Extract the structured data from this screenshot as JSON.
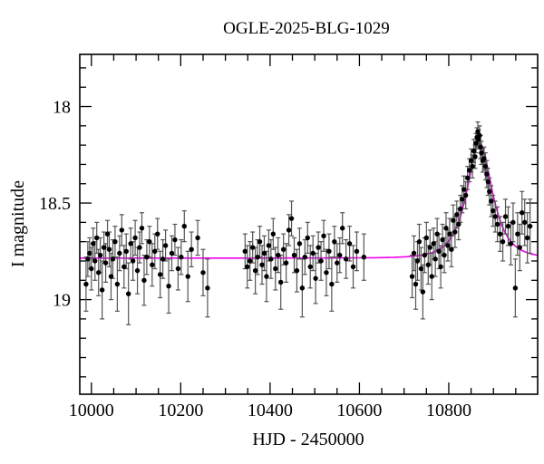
{
  "chart_data": {
    "type": "scatter",
    "title": "OGLE-2025-BLG-1029",
    "xlabel": "HJD - 2450000",
    "ylabel": "I magnitude",
    "xlim": [
      9974,
      10999
    ],
    "ylim": [
      17.73,
      19.49
    ],
    "y_axis_inverted": true,
    "grid": false,
    "legend": null,
    "x_major_ticks": [
      10000,
      10200,
      10400,
      10600,
      10800
    ],
    "x_minor_step": 50,
    "y_major_ticks": [
      18,
      18.5,
      19
    ],
    "y_minor_step": 0.1,
    "colors": {
      "points": "#000000",
      "error_bars": "#555555",
      "model_curve": "#ee00ee",
      "frame": "#000000",
      "background": "#ffffff"
    },
    "model": {
      "kind": "paczynski-microlensing",
      "t0": 10869,
      "tE": 42,
      "u0": 0.67,
      "I_baseline": 18.785,
      "I_peak": 18.19
    },
    "points_format": [
      "hjd_minus_2450000",
      "I_mag",
      "mag_error"
    ],
    "points": [
      [
        9988,
        18.92,
        0.14
      ],
      [
        9992,
        18.79,
        0.09
      ],
      [
        9996,
        18.76,
        0.08
      ],
      [
        10000,
        18.84,
        0.11
      ],
      [
        10004,
        18.71,
        0.08
      ],
      [
        10008,
        18.8,
        0.1
      ],
      [
        10012,
        18.68,
        0.08
      ],
      [
        10016,
        18.86,
        0.12
      ],
      [
        10020,
        18.77,
        0.09
      ],
      [
        10024,
        18.95,
        0.15
      ],
      [
        10028,
        18.73,
        0.08
      ],
      [
        10032,
        18.81,
        0.1
      ],
      [
        10036,
        18.66,
        0.07
      ],
      [
        10040,
        18.74,
        0.09
      ],
      [
        10044,
        18.88,
        0.12
      ],
      [
        10048,
        18.79,
        0.1
      ],
      [
        10053,
        18.7,
        0.08
      ],
      [
        10058,
        18.92,
        0.14
      ],
      [
        10063,
        18.76,
        0.09
      ],
      [
        10068,
        18.64,
        0.08
      ],
      [
        10073,
        18.83,
        0.11
      ],
      [
        10078,
        18.75,
        0.09
      ],
      [
        10083,
        18.97,
        0.16
      ],
      [
        10088,
        18.71,
        0.08
      ],
      [
        10093,
        18.8,
        0.1
      ],
      [
        10098,
        18.68,
        0.09
      ],
      [
        10103,
        18.85,
        0.12
      ],
      [
        10108,
        18.73,
        0.08
      ],
      [
        10113,
        18.63,
        0.08
      ],
      [
        10118,
        18.9,
        0.13
      ],
      [
        10124,
        18.78,
        0.09
      ],
      [
        10130,
        18.7,
        0.08
      ],
      [
        10136,
        18.82,
        0.11
      ],
      [
        10142,
        18.75,
        0.09
      ],
      [
        10148,
        18.66,
        0.08
      ],
      [
        10154,
        18.87,
        0.12
      ],
      [
        10160,
        18.79,
        0.1
      ],
      [
        10166,
        18.72,
        0.08
      ],
      [
        10173,
        18.93,
        0.14
      ],
      [
        10180,
        18.76,
        0.09
      ],
      [
        10187,
        18.69,
        0.08
      ],
      [
        10194,
        18.84,
        0.11
      ],
      [
        10201,
        18.78,
        0.09
      ],
      [
        10208,
        18.62,
        0.08
      ],
      [
        10216,
        18.88,
        0.13
      ],
      [
        10224,
        18.74,
        0.09
      ],
      [
        10238,
        18.68,
        0.09
      ],
      [
        10250,
        18.86,
        0.12
      ],
      [
        10260,
        18.94,
        0.15
      ],
      [
        10344,
        18.75,
        0.09
      ],
      [
        10349,
        18.83,
        0.11
      ],
      [
        10355,
        18.8,
        0.1
      ],
      [
        10361,
        18.73,
        0.08
      ],
      [
        10367,
        18.85,
        0.12
      ],
      [
        10372,
        18.78,
        0.09
      ],
      [
        10377,
        18.7,
        0.08
      ],
      [
        10382,
        18.82,
        0.1
      ],
      [
        10387,
        18.76,
        0.09
      ],
      [
        10392,
        18.88,
        0.13
      ],
      [
        10397,
        18.72,
        0.08
      ],
      [
        10402,
        18.79,
        0.1
      ],
      [
        10407,
        18.66,
        0.08
      ],
      [
        10412,
        18.84,
        0.11
      ],
      [
        10418,
        18.77,
        0.09
      ],
      [
        10424,
        18.91,
        0.14
      ],
      [
        10430,
        18.74,
        0.08
      ],
      [
        10436,
        18.81,
        0.1
      ],
      [
        10442,
        18.64,
        0.08
      ],
      [
        10448,
        18.58,
        0.09
      ],
      [
        10454,
        18.77,
        0.09
      ],
      [
        10460,
        18.85,
        0.11
      ],
      [
        10466,
        18.71,
        0.08
      ],
      [
        10472,
        18.94,
        0.15
      ],
      [
        10478,
        18.78,
        0.09
      ],
      [
        10484,
        18.68,
        0.08
      ],
      [
        10490,
        18.83,
        0.11
      ],
      [
        10496,
        18.76,
        0.09
      ],
      [
        10502,
        18.89,
        0.13
      ],
      [
        10508,
        18.73,
        0.08
      ],
      [
        10514,
        18.8,
        0.1
      ],
      [
        10520,
        18.67,
        0.08
      ],
      [
        10526,
        18.86,
        0.12
      ],
      [
        10532,
        18.75,
        0.09
      ],
      [
        10538,
        18.92,
        0.14
      ],
      [
        10544,
        18.7,
        0.08
      ],
      [
        10550,
        18.81,
        0.1
      ],
      [
        10556,
        18.77,
        0.09
      ],
      [
        10562,
        18.63,
        0.08
      ],
      [
        10570,
        18.79,
        0.1
      ],
      [
        10578,
        18.71,
        0.09
      ],
      [
        10586,
        18.83,
        0.11
      ],
      [
        10594,
        18.75,
        0.1
      ],
      [
        10610,
        18.78,
        0.12
      ],
      [
        10718,
        18.88,
        0.11
      ],
      [
        10722,
        18.76,
        0.09
      ],
      [
        10726,
        18.92,
        0.13
      ],
      [
        10730,
        18.8,
        0.1
      ],
      [
        10734,
        18.7,
        0.09
      ],
      [
        10738,
        18.84,
        0.11
      ],
      [
        10742,
        18.96,
        0.14
      ],
      [
        10746,
        18.77,
        0.09
      ],
      [
        10750,
        18.68,
        0.08
      ],
      [
        10754,
        18.82,
        0.1
      ],
      [
        10758,
        18.73,
        0.09
      ],
      [
        10762,
        18.88,
        0.12
      ],
      [
        10766,
        18.71,
        0.08
      ],
      [
        10770,
        18.79,
        0.09
      ],
      [
        10774,
        18.66,
        0.08
      ],
      [
        10778,
        18.75,
        0.09
      ],
      [
        10782,
        18.83,
        0.11
      ],
      [
        10786,
        18.69,
        0.08
      ],
      [
        10790,
        18.77,
        0.09
      ],
      [
        10794,
        18.63,
        0.08
      ],
      [
        10798,
        18.72,
        0.08
      ],
      [
        10802,
        18.66,
        0.08
      ],
      [
        10806,
        18.74,
        0.09
      ],
      [
        10810,
        18.59,
        0.08
      ],
      [
        10814,
        18.65,
        0.08
      ],
      [
        10818,
        18.56,
        0.07
      ],
      [
        10822,
        18.61,
        0.08
      ],
      [
        10826,
        18.53,
        0.07
      ],
      [
        10830,
        18.48,
        0.07
      ],
      [
        10834,
        18.43,
        0.07
      ],
      [
        10838,
        18.46,
        0.07
      ],
      [
        10842,
        18.37,
        0.06
      ],
      [
        10846,
        18.33,
        0.06
      ],
      [
        10850,
        18.28,
        0.06
      ],
      [
        10853,
        18.31,
        0.06
      ],
      [
        10856,
        18.23,
        0.06
      ],
      [
        10859,
        18.26,
        0.06
      ],
      [
        10861,
        18.19,
        0.05
      ],
      [
        10863,
        18.16,
        0.05
      ],
      [
        10865,
        18.13,
        0.05
      ],
      [
        10867,
        18.17,
        0.05
      ],
      [
        10869,
        18.15,
        0.05
      ],
      [
        10871,
        18.21,
        0.06
      ],
      [
        10873,
        18.24,
        0.06
      ],
      [
        10876,
        18.28,
        0.06
      ],
      [
        10879,
        18.27,
        0.06
      ],
      [
        10882,
        18.31,
        0.07
      ],
      [
        10885,
        18.35,
        0.07
      ],
      [
        10888,
        18.39,
        0.07
      ],
      [
        10891,
        18.44,
        0.07
      ],
      [
        10895,
        18.49,
        0.08
      ],
      [
        10899,
        18.54,
        0.08
      ],
      [
        10904,
        18.57,
        0.08
      ],
      [
        10909,
        18.61,
        0.09
      ],
      [
        10915,
        18.66,
        0.09
      ],
      [
        10921,
        18.7,
        0.1
      ],
      [
        10927,
        18.57,
        0.09
      ],
      [
        10933,
        18.62,
        0.1
      ],
      [
        10939,
        18.71,
        0.11
      ],
      [
        10944,
        18.6,
        0.1
      ],
      [
        10949,
        18.94,
        0.15
      ],
      [
        10954,
        18.66,
        0.11
      ],
      [
        10959,
        18.73,
        0.12
      ],
      [
        10964,
        18.55,
        0.11
      ],
      [
        10970,
        18.6,
        0.12
      ],
      [
        10976,
        18.68,
        0.13
      ],
      [
        10982,
        18.62,
        0.14
      ]
    ]
  }
}
